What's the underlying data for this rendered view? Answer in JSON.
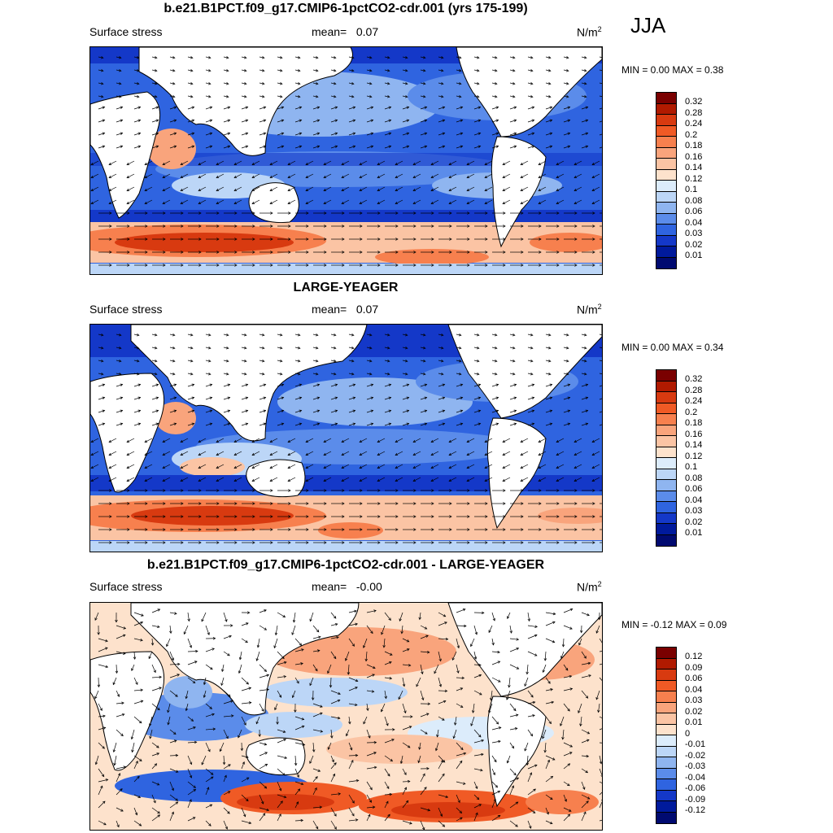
{
  "season": "JJA",
  "panels": [
    {
      "title": "b.e21.B1PCT.f09_g17.CMIP6-1pctCO2-cdr.001 (yrs 175-199)",
      "variable": "Surface stress",
      "mean_label": "mean=",
      "mean_value": "0.07",
      "unit": "N/m",
      "unit_sup": "2",
      "minmax": "MIN =   0.00 MAX =   0.38",
      "ticks": [
        "0.32",
        "0.28",
        "0.24",
        "0.2",
        "0.18",
        "0.16",
        "0.14",
        "0.12",
        "0.1",
        "0.08",
        "0.06",
        "0.04",
        "0.03",
        "0.02",
        "0.01"
      ]
    },
    {
      "title": "LARGE-YEAGER",
      "variable": "Surface stress",
      "mean_label": "mean=",
      "mean_value": "0.07",
      "unit": "N/m",
      "unit_sup": "2",
      "minmax": "MIN =   0.00 MAX =   0.34",
      "ticks": [
        "0.32",
        "0.28",
        "0.24",
        "0.2",
        "0.18",
        "0.16",
        "0.14",
        "0.12",
        "0.1",
        "0.08",
        "0.06",
        "0.04",
        "0.03",
        "0.02",
        "0.01"
      ]
    },
    {
      "title": "b.e21.B1PCT.f09_g17.CMIP6-1pctCO2-cdr.001 - LARGE-YEAGER",
      "variable": "Surface stress",
      "mean_label": "mean=",
      "mean_value": "-0.00",
      "unit": "N/m",
      "unit_sup": "2",
      "minmax": "MIN =  -0.12 MAX =   0.09",
      "ticks": [
        "0.12",
        "0.09",
        "0.06",
        "0.04",
        "0.03",
        "0.02",
        "0.01",
        "0",
        "-0.01",
        "-0.02",
        "-0.03",
        "-0.04",
        "-0.06",
        "-0.09",
        "-0.12"
      ]
    }
  ],
  "colors": {
    "colorbar_top_to_bottom": [
      "#7a0000",
      "#b01a00",
      "#d83a10",
      "#f05a25",
      "#f7804e",
      "#f9a47c",
      "#fbc4a4",
      "#fde2cc",
      "#dcecfb",
      "#bcd6f7",
      "#8fb5f0",
      "#5b8cea",
      "#2f64e0",
      "#1438c8",
      "#001a9c",
      "#000a70"
    ],
    "land": "#ffffff",
    "coast": "#000000",
    "vector": "#000000"
  },
  "icons": {
    "vectors": "arrow-icon",
    "continents": "coastline"
  }
}
